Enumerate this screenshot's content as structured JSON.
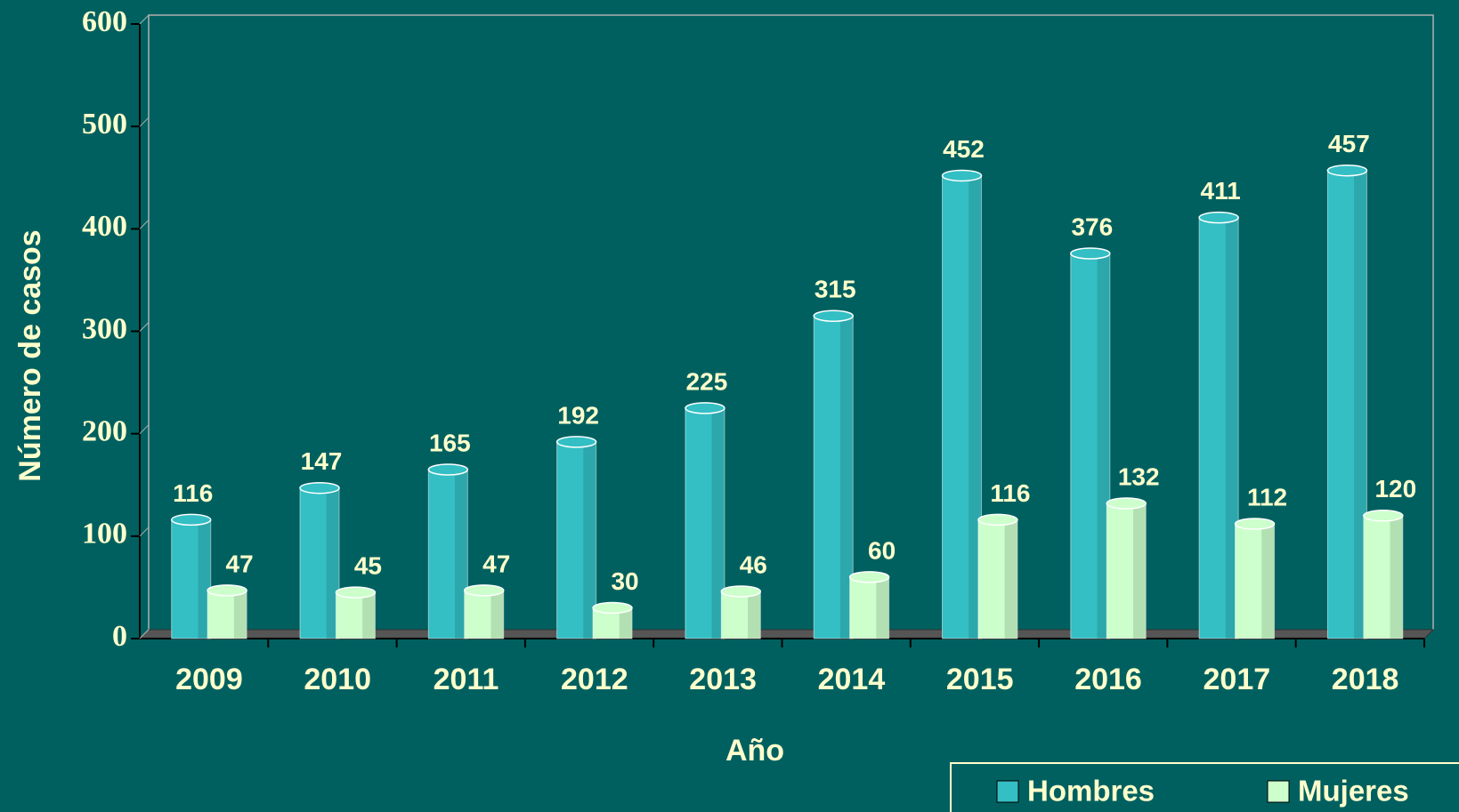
{
  "chart_data": {
    "type": "bar",
    "x_label": "Año",
    "y_label": "Número de casos",
    "categories": [
      "2009",
      "2010",
      "2011",
      "2012",
      "2013",
      "2014",
      "2015",
      "2016",
      "2017",
      "2018"
    ],
    "series": [
      {
        "name": "Hombres",
        "color": "#33BFC4",
        "values": [
          116,
          147,
          165,
          192,
          225,
          315,
          452,
          376,
          411,
          457
        ]
      },
      {
        "name": "Mujeres",
        "color": "#CCFFCC",
        "values": [
          47,
          45,
          47,
          30,
          46,
          60,
          116,
          132,
          112,
          120
        ]
      }
    ],
    "ylim": [
      0,
      600
    ],
    "yticks": [
      0,
      100,
      200,
      300,
      400,
      500,
      600
    ],
    "legend": "bottom-right"
  }
}
